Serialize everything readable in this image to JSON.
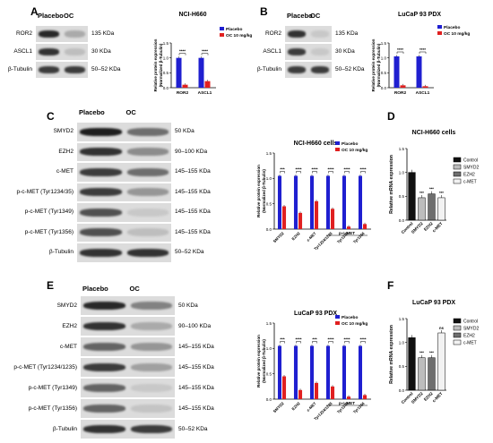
{
  "panel_A": {
    "letter": "A",
    "blot": {
      "groups": [
        "Placebo",
        "OC"
      ],
      "proteins": [
        {
          "name": "ROR2",
          "kda": "135 KDa"
        },
        {
          "name": "ASCL1",
          "kda": "30 KDa"
        },
        {
          "name": "β-Tubulin",
          "kda": "50–52 KDa"
        }
      ]
    }
  },
  "panel_B": {
    "letter": "B",
    "blot": {
      "groups": [
        "Placebo",
        "OC"
      ],
      "proteins": [
        {
          "name": "ROR2",
          "kda": "135 KDa"
        },
        {
          "name": "ASCL1",
          "kda": "30 KDa"
        },
        {
          "name": "β-Tubulin",
          "kda": "50–52 KDa"
        }
      ]
    }
  },
  "panel_C": {
    "letter": "C",
    "blot": {
      "groups": [
        "Placebo",
        "OC"
      ],
      "proteins": [
        {
          "name": "SMYD2",
          "kda": "50 KDa"
        },
        {
          "name": "EZH2",
          "kda": "90–100 KDa"
        },
        {
          "name": "c-MET",
          "kda": "145–155 KDa"
        },
        {
          "name": "p-c-MET (Tyr1234/35)",
          "kda": "145–155 KDa"
        },
        {
          "name": "p-c-MET (Tyr1349)",
          "kda": "145–155 KDa"
        },
        {
          "name": "p-c-MET (Tyr1356)",
          "kda": "145–155 KDa"
        },
        {
          "name": "β-Tubulin",
          "kda": "50–52 KDa"
        }
      ]
    }
  },
  "panel_D": {
    "letter": "D"
  },
  "panel_E": {
    "letter": "E",
    "blot": {
      "groups": [
        "Placebo",
        "OC"
      ],
      "proteins": [
        {
          "name": "SMYD2",
          "kda": "50 KDa"
        },
        {
          "name": "EZH2",
          "kda": "90–100 KDa"
        },
        {
          "name": "c-MET",
          "kda": "145–155 KDa"
        },
        {
          "name": "p-c-MET (Tyr1234/1235)",
          "kda": "145–155 KDa"
        },
        {
          "name": "p-c-MET (Tyr1349)",
          "kda": "145–155 KDa"
        },
        {
          "name": "p-c-MET (Tyr1356)",
          "kda": "145–155 KDa"
        },
        {
          "name": "β-Tubulin",
          "kda": "50–52 KDa"
        }
      ]
    }
  },
  "panel_F": {
    "letter": "F"
  },
  "colors": {
    "placebo": "#1f1fd0",
    "oc": "#e02020",
    "control": "#111111",
    "smyd2": "#bdbdbd",
    "ezh2": "#6e6e6e",
    "cmet": "#f2f2f2"
  },
  "chart_data": [
    {
      "id": "A",
      "type": "bar",
      "title": "NCI-H660",
      "ylabel": "Relative protein expression (Normalized β-Tubulin)",
      "categories": [
        "ROR2",
        "ASCL1"
      ],
      "series": [
        {
          "name": "Placebo",
          "values": [
            1.0,
            1.0
          ]
        },
        {
          "name": "OC 10 mg/kg",
          "values": [
            0.1,
            0.22
          ]
        }
      ],
      "ylim": [
        0,
        1.5
      ],
      "yticks": [
        "0.0",
        "0.5",
        "1.0",
        "1.5"
      ],
      "significance": [
        "****",
        "****"
      ]
    },
    {
      "id": "B",
      "type": "bar",
      "title": "LuCaP 93 PDX",
      "ylabel": "Relative protein expression (Normalized β-Tubulin)",
      "categories": [
        "ROR2",
        "ASCL1"
      ],
      "series": [
        {
          "name": "Placebo",
          "values": [
            1.05,
            1.05
          ]
        },
        {
          "name": "OC 10 mg/kg",
          "values": [
            0.08,
            0.05
          ]
        }
      ],
      "ylim": [
        0,
        1.5
      ],
      "yticks": [
        "0.0",
        "0.5",
        "1.0",
        "1.5"
      ],
      "significance": [
        "****",
        "****"
      ]
    },
    {
      "id": "C",
      "type": "bar",
      "title": "NCI-H660 cells",
      "ylabel": "Relative protein expression (Normalized β-Tubulin)",
      "categories": [
        "SMYD2",
        "EZH2",
        "c-MET",
        "Tyr1234/1235",
        "Tyr1349",
        "Tyr1356"
      ],
      "group_label": "p-c-MET",
      "series": [
        {
          "name": "Placebo",
          "values": [
            1.05,
            1.05,
            1.05,
            1.05,
            1.05,
            1.05
          ]
        },
        {
          "name": "OC 10 mg/kg",
          "values": [
            0.45,
            0.32,
            0.55,
            0.4,
            0.05,
            0.1
          ]
        }
      ],
      "ylim": [
        0,
        1.5
      ],
      "yticks": [
        "0.0",
        "0.5",
        "1.0",
        "1.5"
      ],
      "significance": [
        "***",
        "****",
        "****",
        "****",
        "****",
        "****"
      ]
    },
    {
      "id": "D",
      "type": "bar",
      "title": "NCI-H660 cells",
      "ylabel": "Relative mRNA expression",
      "categories": [
        "Control",
        "SMYD2",
        "EZH2",
        "c-MET"
      ],
      "values": [
        1.0,
        0.47,
        0.55,
        0.47
      ],
      "legend": [
        "Control",
        "SMYD2",
        "EZH2",
        "c-MET"
      ],
      "ylim": [
        0,
        1.5
      ],
      "yticks": [
        "0.0",
        "0.5",
        "1.0",
        "1.5"
      ],
      "significance": [
        "",
        "***",
        "***",
        "***"
      ]
    },
    {
      "id": "E",
      "type": "bar",
      "title": "LuCaP 93 PDX",
      "ylabel": "Relative protein expression (Normalized β-Tubulin)",
      "categories": [
        "SMYD2",
        "EZH2",
        "c-MET",
        "Tyr1234/1235",
        "Tyr1349",
        "Tyr1356"
      ],
      "group_label": "p-c-MET",
      "series": [
        {
          "name": "Placebo",
          "values": [
            1.05,
            1.05,
            1.05,
            1.05,
            1.05,
            1.05
          ]
        },
        {
          "name": "OC 10 mg/kg",
          "values": [
            0.45,
            0.18,
            0.32,
            0.25,
            0.05,
            0.08
          ]
        }
      ],
      "ylim": [
        0,
        1.5
      ],
      "yticks": [
        "0.0",
        "0.5",
        "1.0",
        "1.5"
      ],
      "significance": [
        "***",
        "****",
        "***",
        "****",
        "****",
        "****"
      ]
    },
    {
      "id": "F",
      "type": "bar",
      "title": "LuCaP 93 PDX",
      "ylabel": "Relative mRNA expression",
      "categories": [
        "Control",
        "SMYD2",
        "EZH2",
        "c-MET"
      ],
      "values": [
        1.1,
        0.68,
        0.68,
        1.2
      ],
      "legend": [
        "Control",
        "SMYD2",
        "EZH2",
        "c-MET"
      ],
      "ylim": [
        0,
        1.5
      ],
      "yticks": [
        "0.0",
        "0.5",
        "1.0",
        "1.5"
      ],
      "significance": [
        "",
        "***",
        "***",
        "ns"
      ]
    }
  ]
}
